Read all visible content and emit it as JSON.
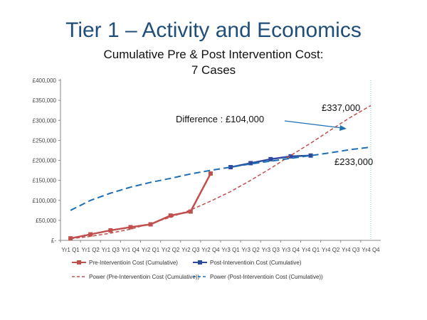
{
  "slide": {
    "title": "Tier 1 – Activity and Economics",
    "subtitle_line1": "Cumulative Pre & Post Intervention Cost:",
    "subtitle_line2": "7 Cases"
  },
  "chart_data": {
    "type": "line",
    "categories": [
      "Yr1 Q1",
      "Yr1 Q2",
      "Yr1 Q3",
      "Yr1 Q4",
      "Yr2 Q1",
      "Yr2 Q2",
      "Yr2 Q3",
      "Yr2 Q4",
      "Yr3 Q1",
      "Yr3 Q2",
      "Yr3 Q3",
      "Yr3 Q4",
      "Yr4 Q1",
      "Yr4 Q2",
      "Yr4 Q3",
      "Yr4 Q4"
    ],
    "y_ticks": [
      0,
      50000,
      100000,
      150000,
      200000,
      250000,
      300000,
      350000,
      400000
    ],
    "y_tick_labels": [
      "£-",
      "£50,000",
      "£100,000",
      "£150,000",
      "£200,000",
      "£250,000",
      "£300,000",
      "£350,000",
      "£400,000"
    ],
    "ylim": [
      0,
      400000
    ],
    "series": [
      {
        "name": "Pre-Interventioin Cost (Cumulative)",
        "color": "#c0504d",
        "style": "solid-marker",
        "values": [
          5000,
          15000,
          25000,
          33000,
          40000,
          62000,
          72000,
          167000,
          null,
          null,
          null,
          null,
          null,
          null,
          null,
          null
        ]
      },
      {
        "name": "Post-Interventioin Cost (Cumulative)",
        "color": "#2e4a9e",
        "style": "solid-marker",
        "values": [
          null,
          null,
          null,
          null,
          null,
          null,
          null,
          null,
          183000,
          193000,
          203000,
          210000,
          212000,
          null,
          null,
          null
        ]
      },
      {
        "name": "Power (Pre-Interventioin Cost (Cumulative))",
        "color": "#c0504d",
        "style": "dashed",
        "values": [
          4000,
          10000,
          18000,
          28000,
          42000,
          58000,
          76000,
          98000,
          122000,
          150000,
          180000,
          212000,
          243000,
          276000,
          308000,
          337000
        ]
      },
      {
        "name": "Power (Post-Interventioin Cost (Cumulative))",
        "color": "#1f6fb5",
        "style": "dashed",
        "values": [
          75000,
          100000,
          118000,
          133000,
          145000,
          155000,
          166000,
          175000,
          183000,
          191000,
          198000,
          205000,
          212000,
          219000,
          227000,
          233000
        ]
      }
    ],
    "annotations": {
      "difference_label": "Difference : £104,000",
      "pre_end_label": "£337,000",
      "post_end_label": "£233,000"
    },
    "legend_position": "bottom",
    "grid": false
  }
}
